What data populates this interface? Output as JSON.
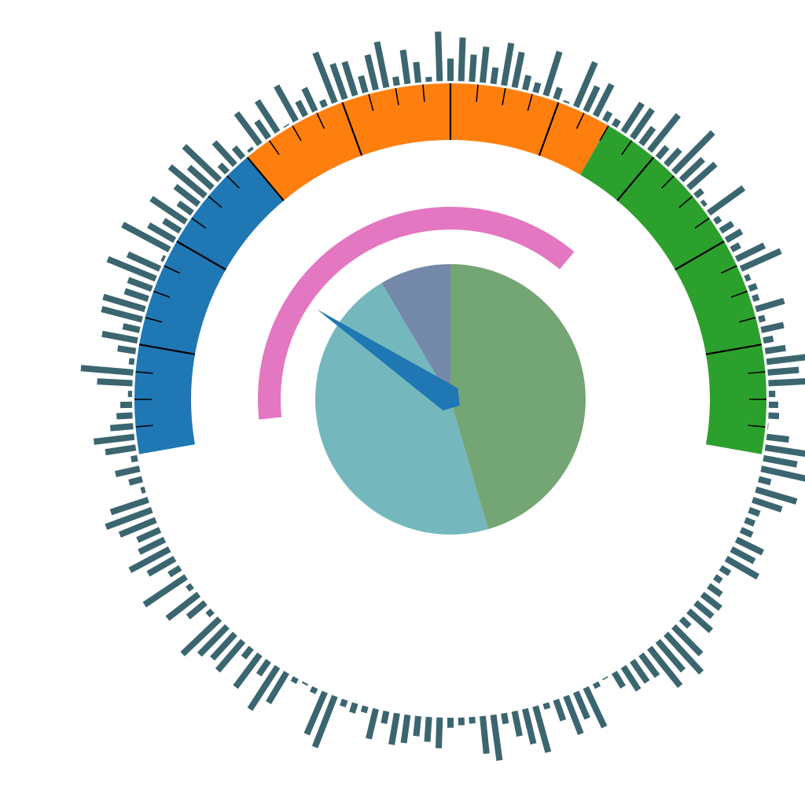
{
  "chart_data": {
    "type": "gauge",
    "gauge": {
      "min": 0,
      "max": 100,
      "bands": [
        {
          "from": 0,
          "to": 30,
          "color": "#1f77b4"
        },
        {
          "from": 30,
          "to": 65,
          "color": "#ff7f0e"
        },
        {
          "from": 65,
          "to": 100,
          "color": "#2ca02c"
        }
      ],
      "needle_value": 22,
      "needle_color": "#1f77b4",
      "progress_value": 70,
      "progress_color": "#e377c2",
      "tick_color": "#000000"
    },
    "pie": {
      "values": [
        45.5,
        46,
        8.5
      ],
      "colors": [
        "#74a574",
        "#74b8bd",
        "#7489aa"
      ]
    },
    "radial_bars": {
      "color": "#3b6670",
      "values": [
        0.38,
        0.74,
        0.46,
        0.61,
        0.28,
        0.73,
        0.61,
        0.25,
        0.17,
        0.78,
        0.2,
        0.03,
        0.82,
        0.46,
        0.6,
        0.17,
        0.13,
        0.58,
        0.59,
        0.35,
        0.78,
        0.24,
        0.35,
        0.95,
        0.51,
        0.61,
        0.15,
        0.07,
        0.73,
        0.11,
        0.24,
        0.3,
        0.16,
        0.53,
        0.74,
        0.09,
        0.14,
        0.11,
        0.5,
        0.11,
        0.39,
        0.17,
        0.35,
        0.85,
        0.53,
        0.78,
        0.11,
        0.16,
        0.18,
        0.01,
        0.38,
        0.71,
        0.58,
        0.88,
        0.21,
        0.72,
        0.52,
        0.19,
        0.17,
        0.21,
        0.5,
        0.44,
        0.62,
        0.18,
        0.13,
        0.26,
        0.39,
        0.37,
        0.51,
        0.19,
        0.66,
        0.89,
        0.66,
        0.83,
        0.46,
        0.44,
        0.47,
        0.29,
        0.02,
        0.09,
        0.74,
        0.49,
        0.69,
        0.37,
        0.1,
        0.81,
        0.61,
        0.43,
        0.18,
        0.78,
        0.64,
        0.11,
        0.13,
        0.17,
        0.52,
        0.42,
        0.34,
        0.48,
        0.54,
        0.21,
        0.52,
        0.11,
        0.17,
        0.12,
        0.93,
        0.78,
        0.1,
        0.03,
        0.09,
        0.6,
        0.86,
        0.29,
        0.69,
        0.21,
        0.66,
        0.57,
        0.67,
        0.87,
        0.11,
        0.38,
        0.67,
        0.1,
        0.85,
        0.22,
        0.52,
        0.76,
        0.48,
        0.42,
        0.66,
        0.83,
        0.67,
        0.07,
        0.23,
        0.42,
        0.11,
        0.52,
        0.69,
        0.39,
        0.27,
        0.2,
        0.07,
        0.6,
        0.89,
        0.09,
        0.31,
        0.61,
        0.29,
        0.71,
        0.74,
        0.42,
        0.43,
        0.88,
        0.6,
        0.05,
        0.9,
        0.51,
        0.33,
        0.71,
        0.29,
        0.5,
        0.78,
        0.53,
        0.83,
        0.18,
        0.52,
        0.23,
        0.05,
        0.66,
        0.35,
        0.63,
        0.02,
        0.68,
        0.28,
        0.43,
        0.12,
        0.91,
        0.63,
        0.6,
        0.29,
        0.61,
        0.79,
        0.15,
        0.58,
        0.35,
        0.08,
        0.84
      ]
    }
  }
}
